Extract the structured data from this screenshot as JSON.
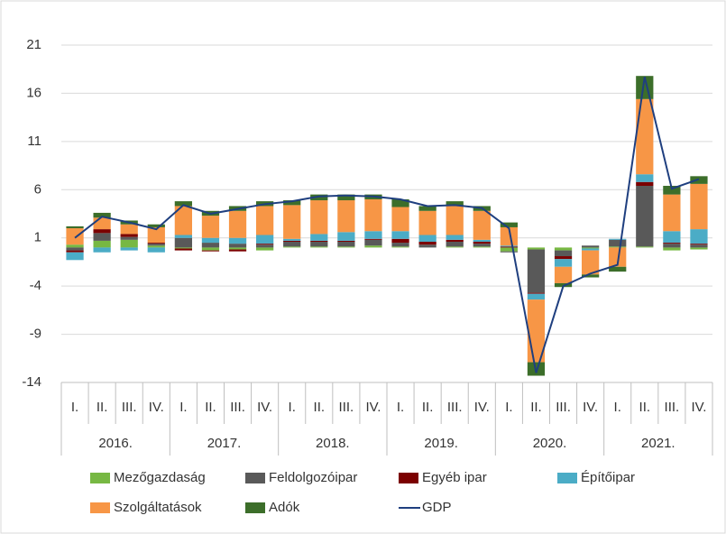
{
  "chart_data": {
    "type": "bar",
    "stacked": true,
    "categories": [
      "I.",
      "II.",
      "III.",
      "IV.",
      "I.",
      "II.",
      "III.",
      "IV.",
      "I.",
      "II.",
      "III.",
      "IV.",
      "I.",
      "II.",
      "III.",
      "IV.",
      "I.",
      "II.",
      "III.",
      "IV.",
      "I.",
      "II.",
      "III.",
      "IV."
    ],
    "years": [
      "2016.",
      "2017.",
      "2018.",
      "2019.",
      "2020.",
      "2021."
    ],
    "ylim": [
      -14,
      21
    ],
    "yticks": [
      -14,
      -9,
      -4,
      1,
      6,
      11,
      16,
      21
    ],
    "grid": true,
    "legend": "bottom",
    "series": [
      {
        "name": "Mezőgazdaság",
        "color": "#77b843",
        "values": [
          0.3,
          0.7,
          0.8,
          0.2,
          -0.1,
          -0.3,
          -0.2,
          -0.3,
          0.1,
          0.1,
          0.1,
          0.2,
          0.1,
          0.0,
          0.1,
          0.1,
          -0.4,
          -0.2,
          -0.3,
          -0.1,
          0.1,
          0.1,
          -0.3,
          -0.2
        ]
      },
      {
        "name": "Feldolgozóipar",
        "color": "#595959",
        "values": [
          -0.3,
          0.8,
          0.3,
          0.2,
          1.0,
          0.5,
          0.4,
          0.3,
          0.5,
          0.5,
          0.5,
          0.6,
          0.4,
          0.3,
          0.5,
          0.3,
          -0.1,
          -4.5,
          -0.6,
          0.2,
          0.7,
          6.3,
          0.4,
          0.3
        ]
      },
      {
        "name": "Egyéb ipar",
        "color": "#7b0000",
        "values": [
          -0.2,
          0.4,
          0.3,
          0.1,
          -0.2,
          -0.1,
          -0.2,
          0.1,
          0.1,
          0.1,
          0.1,
          0.1,
          0.4,
          0.3,
          0.2,
          0.2,
          0.1,
          -0.1,
          -0.3,
          0.0,
          0.0,
          0.4,
          0.1,
          0.1
        ]
      },
      {
        "name": "Építőipar",
        "color": "#4bacc6",
        "values": [
          -0.8,
          -0.5,
          -0.3,
          -0.5,
          0.3,
          0.5,
          0.6,
          0.9,
          0.2,
          0.7,
          0.9,
          0.8,
          0.8,
          0.7,
          0.5,
          0.2,
          0.1,
          -0.6,
          -0.8,
          -0.2,
          0.1,
          0.8,
          1.2,
          1.5
        ]
      },
      {
        "name": "Szolgáltatások",
        "color": "#f79646",
        "values": [
          1.7,
          1.2,
          1.0,
          1.6,
          3.0,
          2.3,
          2.8,
          3.0,
          3.5,
          3.5,
          3.3,
          3.3,
          2.5,
          2.5,
          3.0,
          3.0,
          1.9,
          -6.5,
          -1.7,
          -2.5,
          -2.0,
          7.8,
          3.8,
          4.7
        ]
      },
      {
        "name": "Adók",
        "color": "#3c6e2a",
        "values": [
          0.2,
          0.5,
          0.4,
          0.3,
          0.5,
          0.5,
          0.5,
          0.5,
          0.5,
          0.6,
          0.6,
          0.5,
          0.8,
          0.5,
          0.5,
          0.5,
          0.5,
          -1.4,
          -0.4,
          -0.3,
          -0.5,
          2.4,
          0.9,
          0.8
        ]
      },
      {
        "name": "GDP",
        "type": "line",
        "color": "#1f3f7f",
        "values": [
          1.0,
          3.2,
          2.6,
          1.9,
          4.4,
          3.5,
          4.0,
          4.5,
          4.8,
          5.3,
          5.4,
          5.3,
          5.0,
          4.3,
          4.4,
          4.1,
          2.0,
          -13.0,
          -4.0,
          -2.7,
          -1.8,
          17.7,
          6.1,
          7.1
        ]
      }
    ]
  }
}
